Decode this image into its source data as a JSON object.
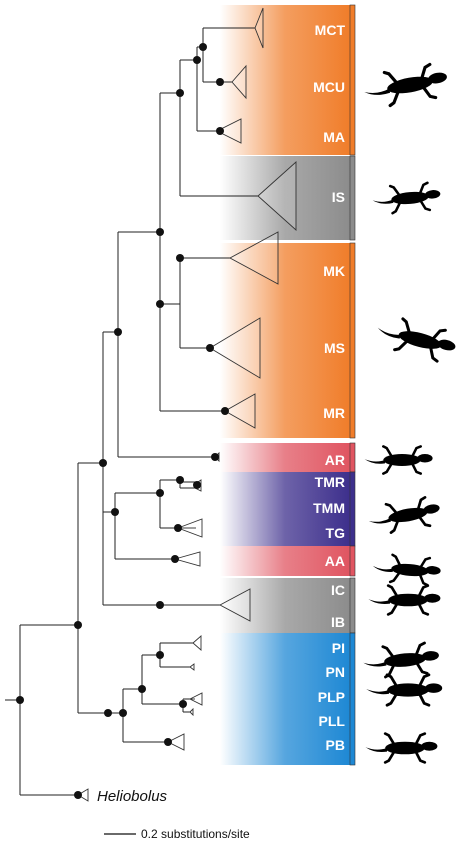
{
  "figure": {
    "type": "phylogenetic-tree",
    "scale_label": "0.2 substitutions/site",
    "outgroup_label": "Heliobolus"
  },
  "colors": {
    "orange": "#f07d2a",
    "gray": "#8c8c8c",
    "red": "#e05561",
    "purple": "#3d2f8c",
    "blue": "#1e88d4",
    "dot": "#111111",
    "branch": "#222222"
  },
  "clades": [
    {
      "label": "MCT",
      "color": "orange"
    },
    {
      "label": "MCU",
      "color": "orange"
    },
    {
      "label": "MA",
      "color": "orange"
    },
    {
      "label": "IS",
      "color": "gray"
    },
    {
      "label": "MK",
      "color": "orange"
    },
    {
      "label": "MS",
      "color": "orange"
    },
    {
      "label": "MR",
      "color": "orange"
    },
    {
      "label": "AR",
      "color": "red"
    },
    {
      "label": "TMR",
      "color": "purple"
    },
    {
      "label": "TMM",
      "color": "purple"
    },
    {
      "label": "TG",
      "color": "purple"
    },
    {
      "label": "AA",
      "color": "red"
    },
    {
      "label": "IC",
      "color": "gray"
    },
    {
      "label": "IB",
      "color": "gray"
    },
    {
      "label": "PI",
      "color": "blue"
    },
    {
      "label": "PN",
      "color": "blue"
    },
    {
      "label": "PLP",
      "color": "blue"
    },
    {
      "label": "PLL",
      "color": "blue"
    },
    {
      "label": "PB",
      "color": "blue"
    }
  ],
  "silhouettes": [
    {
      "icon": "lizard-silhouette-icon"
    },
    {
      "icon": "lizard-silhouette-icon"
    },
    {
      "icon": "lizard-silhouette-icon"
    },
    {
      "icon": "lizard-silhouette-icon"
    },
    {
      "icon": "lizard-silhouette-icon"
    },
    {
      "icon": "lizard-silhouette-icon"
    },
    {
      "icon": "lizard-silhouette-icon"
    },
    {
      "icon": "lizard-silhouette-icon"
    },
    {
      "icon": "lizard-silhouette-icon"
    },
    {
      "icon": "lizard-silhouette-icon"
    }
  ]
}
